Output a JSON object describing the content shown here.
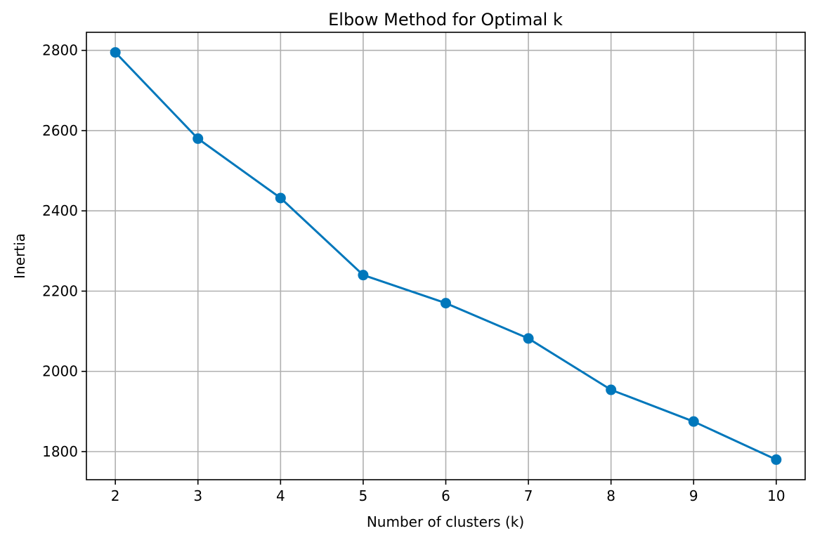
{
  "chart_data": {
    "type": "line",
    "title": "Elbow Method for Optimal k",
    "xlabel": "Number of clusters (k)",
    "ylabel": "Inertia",
    "x": [
      2,
      3,
      4,
      5,
      6,
      7,
      8,
      9,
      10
    ],
    "y": [
      2795,
      2580,
      2432,
      2240,
      2170,
      2082,
      1954,
      1875,
      1780
    ],
    "xlim": [
      1.65,
      10.35
    ],
    "ylim": [
      1730,
      2845
    ],
    "xticks": [
      2,
      3,
      4,
      5,
      6,
      7,
      8,
      9,
      10
    ],
    "yticks": [
      1800,
      2000,
      2200,
      2400,
      2600,
      2800
    ],
    "grid": true,
    "marker": "circle",
    "color": "#0077BB"
  }
}
